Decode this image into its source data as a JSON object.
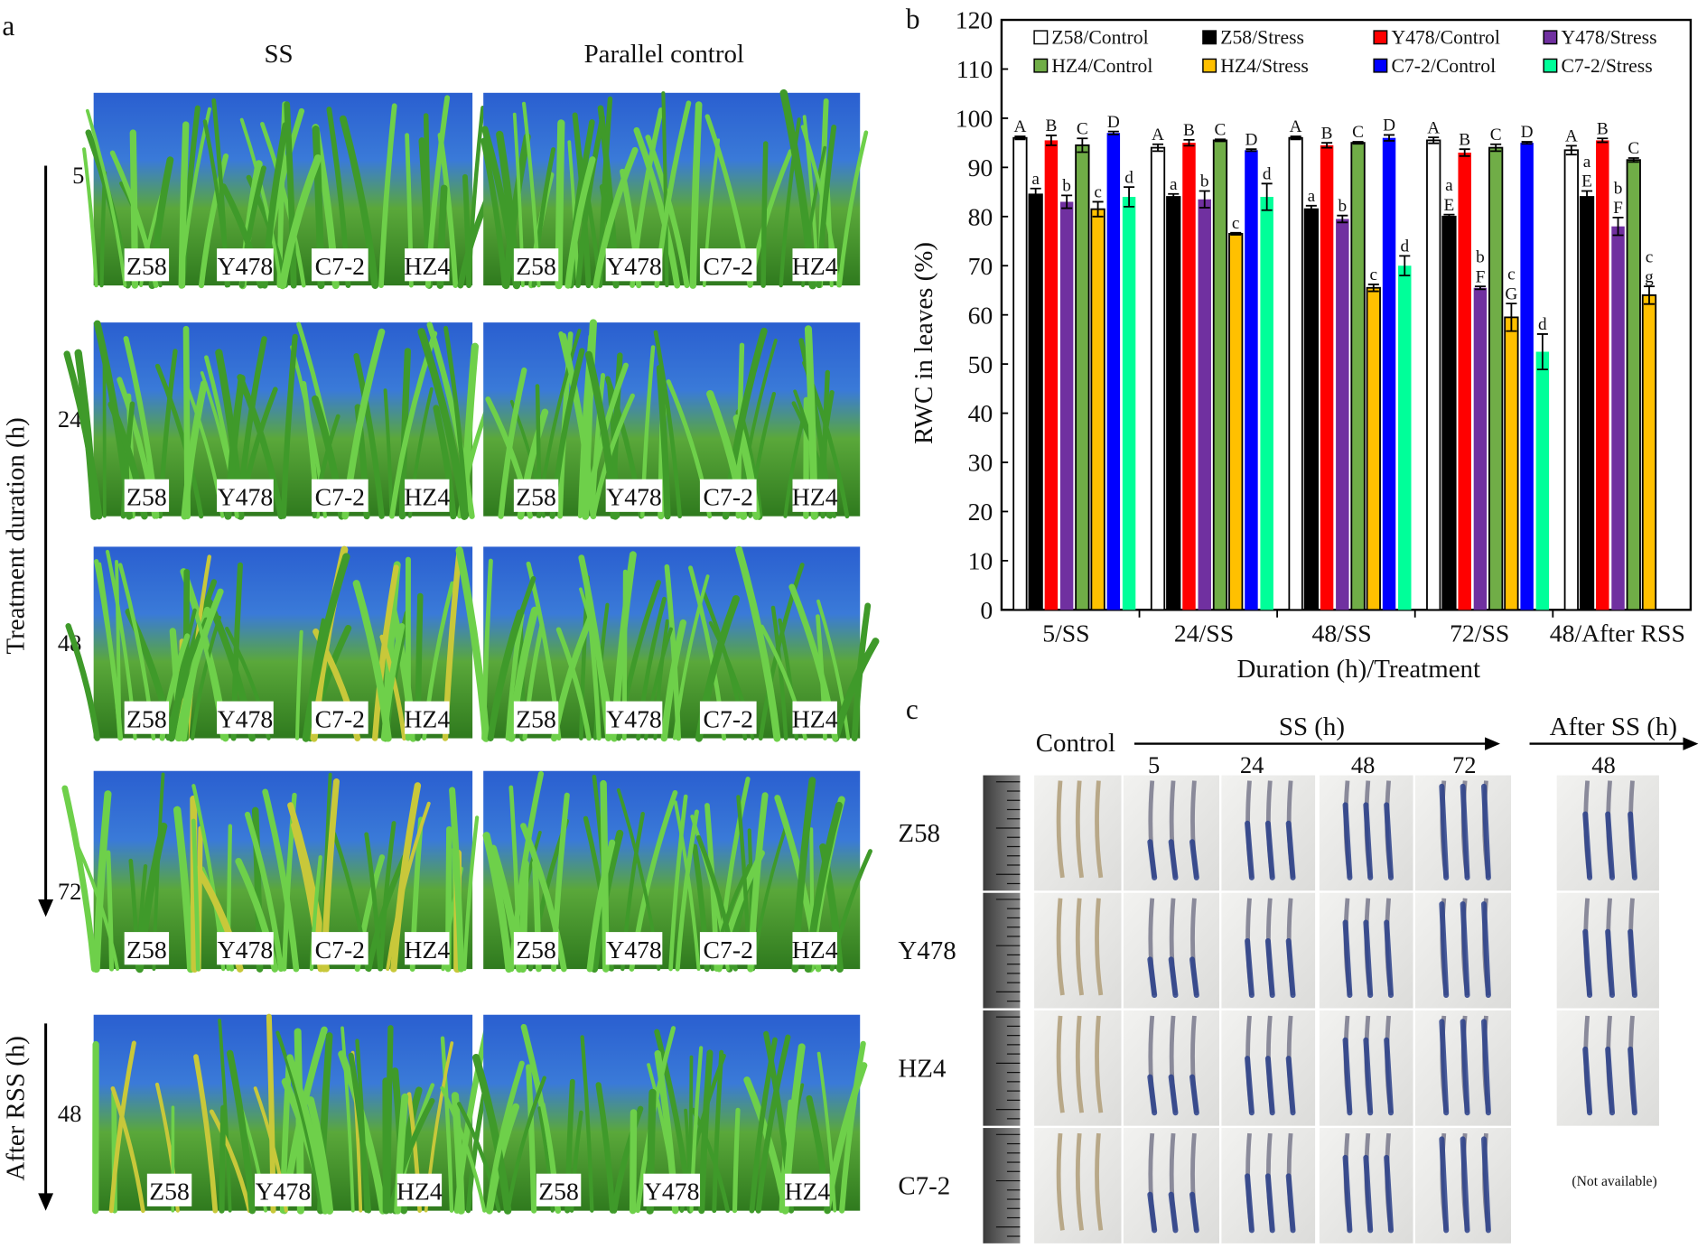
{
  "panel_a": {
    "label": "a",
    "col_headers": [
      "SS",
      "Parallel control"
    ],
    "axis_label": "Treatment duration (h)",
    "recovery_label": "After RSS (h)",
    "rows": [
      {
        "time": "5",
        "ss": [
          "Z58",
          "Y478",
          "C7-2",
          "HZ4"
        ],
        "control": [
          "Z58",
          "Y478",
          "C7-2",
          "HZ4"
        ]
      },
      {
        "time": "24",
        "ss": [
          "Z58",
          "Y478",
          "C7-2",
          "HZ4"
        ],
        "control": [
          "Z58",
          "Y478",
          "C7-2",
          "HZ4"
        ]
      },
      {
        "time": "48",
        "ss": [
          "Z58",
          "Y478",
          "C7-2",
          "HZ4"
        ],
        "control": [
          "Z58",
          "Y478",
          "C7-2",
          "HZ4"
        ]
      },
      {
        "time": "72",
        "ss": [
          "Z58",
          "Y478",
          "C7-2",
          "HZ4"
        ],
        "control": [
          "Z58",
          "Y478",
          "C7-2",
          "HZ4"
        ]
      },
      {
        "time": "48",
        "ss": [
          "Z58",
          "Y478",
          "HZ4"
        ],
        "control": [
          "Z58",
          "Y478",
          "HZ4"
        ]
      }
    ]
  },
  "panel_b": {
    "label": "b"
  },
  "chart_data": {
    "type": "bar",
    "title": "",
    "xlabel": "Duration (h)/Treatment",
    "ylabel": "RWC in leaves (%)",
    "ylim": [
      0,
      120
    ],
    "yticks": [
      0,
      10,
      20,
      30,
      40,
      50,
      60,
      70,
      80,
      90,
      100,
      110,
      120
    ],
    "grid": false,
    "legend_position": "top",
    "categories": [
      "5/SS",
      "24/SS",
      "48/SS",
      "72/SS",
      "48/After RSS"
    ],
    "series": [
      {
        "name": "Z58/Control",
        "color": "#ffffff",
        "values": [
          96,
          94,
          96,
          95.5,
          93.5
        ],
        "err": [
          0.3,
          0.7,
          0.3,
          0.6,
          0.9
        ],
        "letters": [
          "A",
          "A",
          "A",
          "A",
          "A"
        ]
      },
      {
        "name": "Z58/Stress",
        "color": "#000000",
        "values": [
          84.5,
          84,
          81.5,
          80,
          84
        ],
        "err": [
          1.2,
          0.6,
          0.7,
          0.4,
          1.2
        ],
        "letters": [
          "a",
          "a",
          "a",
          "a E",
          "a E"
        ]
      },
      {
        "name": "Y478/Control",
        "color": "#ff0000",
        "values": [
          95.5,
          95,
          94.5,
          93,
          95.5
        ],
        "err": [
          1.0,
          0.6,
          0.5,
          0.7,
          0.4
        ],
        "letters": [
          "B",
          "B",
          "B",
          "B",
          "B"
        ]
      },
      {
        "name": "Y478/Stress",
        "color": "#7030a0",
        "values": [
          83,
          83.5,
          79.5,
          65.5,
          78
        ],
        "err": [
          1.3,
          1.7,
          0.7,
          0.3,
          1.8
        ],
        "letters": [
          "b",
          "b",
          "b",
          "b F",
          "b F"
        ]
      },
      {
        "name": "HZ4/Control",
        "color": "#70ad47",
        "values": [
          94.5,
          95.5,
          95,
          94,
          91.5
        ],
        "err": [
          1.4,
          0.2,
          0.2,
          0.7,
          0.4
        ],
        "letters": [
          "C",
          "C",
          "C",
          "C",
          "C"
        ]
      },
      {
        "name": "HZ4/Stress",
        "color": "#ffc000",
        "values": [
          81.5,
          76.5,
          65.5,
          59.5,
          64
        ],
        "err": [
          1.5,
          0.2,
          0.7,
          2.8,
          1.8
        ],
        "letters": [
          "c",
          "c",
          "c",
          "c G",
          "c g"
        ]
      },
      {
        "name": "C7-2/Control",
        "color": "#0000ff",
        "values": [
          97,
          93.5,
          96,
          95,
          null
        ],
        "err": [
          0.3,
          0.2,
          0.6,
          0.2,
          null
        ],
        "letters": [
          "D",
          "D",
          "D",
          "D",
          ""
        ]
      },
      {
        "name": "C7-2/Stress",
        "color": "#00ff99",
        "values": [
          84,
          84,
          70,
          52.5,
          null
        ],
        "err": [
          2.0,
          2.7,
          2.0,
          3.6,
          null
        ],
        "letters": [
          "d",
          "d",
          "d",
          "d",
          ""
        ]
      }
    ]
  },
  "panel_c": {
    "label": "c",
    "control_label": "Control",
    "ss_label": "SS (h)",
    "after_label": "After SS (h)",
    "ss_times": [
      "5",
      "24",
      "48",
      "72"
    ],
    "after_times": [
      "48"
    ],
    "rows": [
      "Z58",
      "Y478",
      "HZ4",
      "C7-2"
    ],
    "not_available": "(Not available)"
  }
}
